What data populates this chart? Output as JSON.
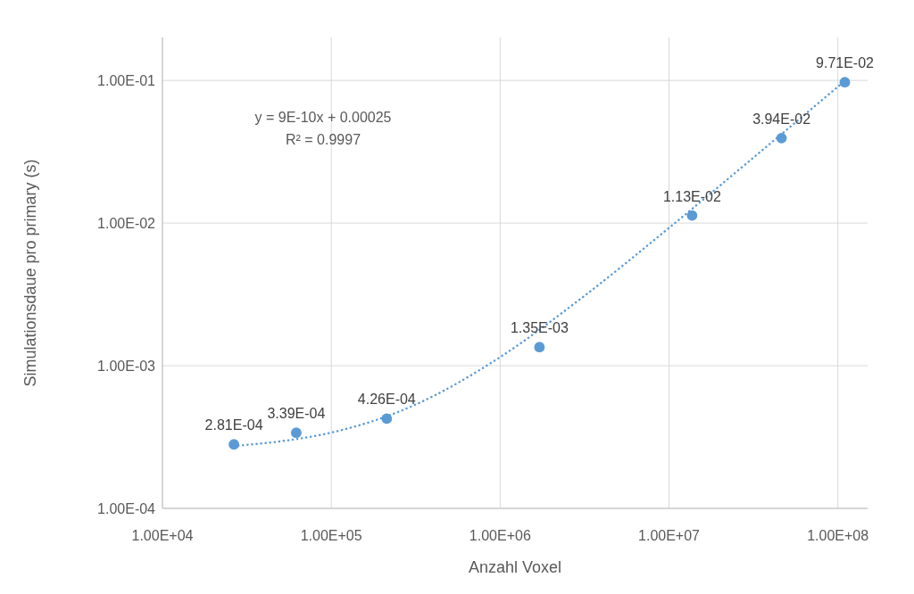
{
  "chart_data": {
    "type": "scatter",
    "xlabel": "Anzahl Voxel",
    "ylabel": "Simulationsdaue pro primary (s)",
    "log": "xy",
    "grid": true,
    "xlim": [
      10000,
      150000000
    ],
    "ylim": [
      0.0001,
      0.2
    ],
    "xticks": [
      {
        "value": 10000,
        "label": "1.00E+04"
      },
      {
        "value": 100000,
        "label": "1.00E+05"
      },
      {
        "value": 1000000,
        "label": "1.00E+06"
      },
      {
        "value": 10000000,
        "label": "1.00E+07"
      },
      {
        "value": 100000000,
        "label": "1.00E+08"
      }
    ],
    "yticks": [
      {
        "value": 0.0001,
        "label": "1.00E-04"
      },
      {
        "value": 0.001,
        "label": "1.00E-03"
      },
      {
        "value": 0.01,
        "label": "1.00E-02"
      },
      {
        "value": 0.1,
        "label": "1.00E-01"
      }
    ],
    "annotations": [
      "y = 9E-10x + 0.00025",
      "R² = 0.9997"
    ],
    "series": [
      {
        "type": "line",
        "color": "#5b9bd5",
        "line_style": "dotted",
        "marker": "none",
        "x": [
          26500,
          50000,
          100000,
          300000,
          1000000,
          3000000,
          10000000,
          30000000,
          110000000
        ],
        "values": [
          0.000274,
          0.000295,
          0.00034,
          0.00052,
          0.00115,
          0.00295,
          0.00925,
          0.0273,
          0.0993
        ]
      },
      {
        "color": "#5b9bd5",
        "marker": "circle",
        "x": [
          26500,
          62000,
          213000,
          1710000,
          13700000,
          46400000,
          110000000
        ],
        "values": [
          0.000281,
          0.000339,
          0.000426,
          0.00135,
          0.0113,
          0.0394,
          0.0971
        ],
        "value_labels": [
          "2.81E-04",
          "3.39E-04",
          "4.26E-04",
          "1.35E-03",
          "1.13E-02",
          "3.94E-02",
          "9.71E-02"
        ]
      }
    ]
  }
}
